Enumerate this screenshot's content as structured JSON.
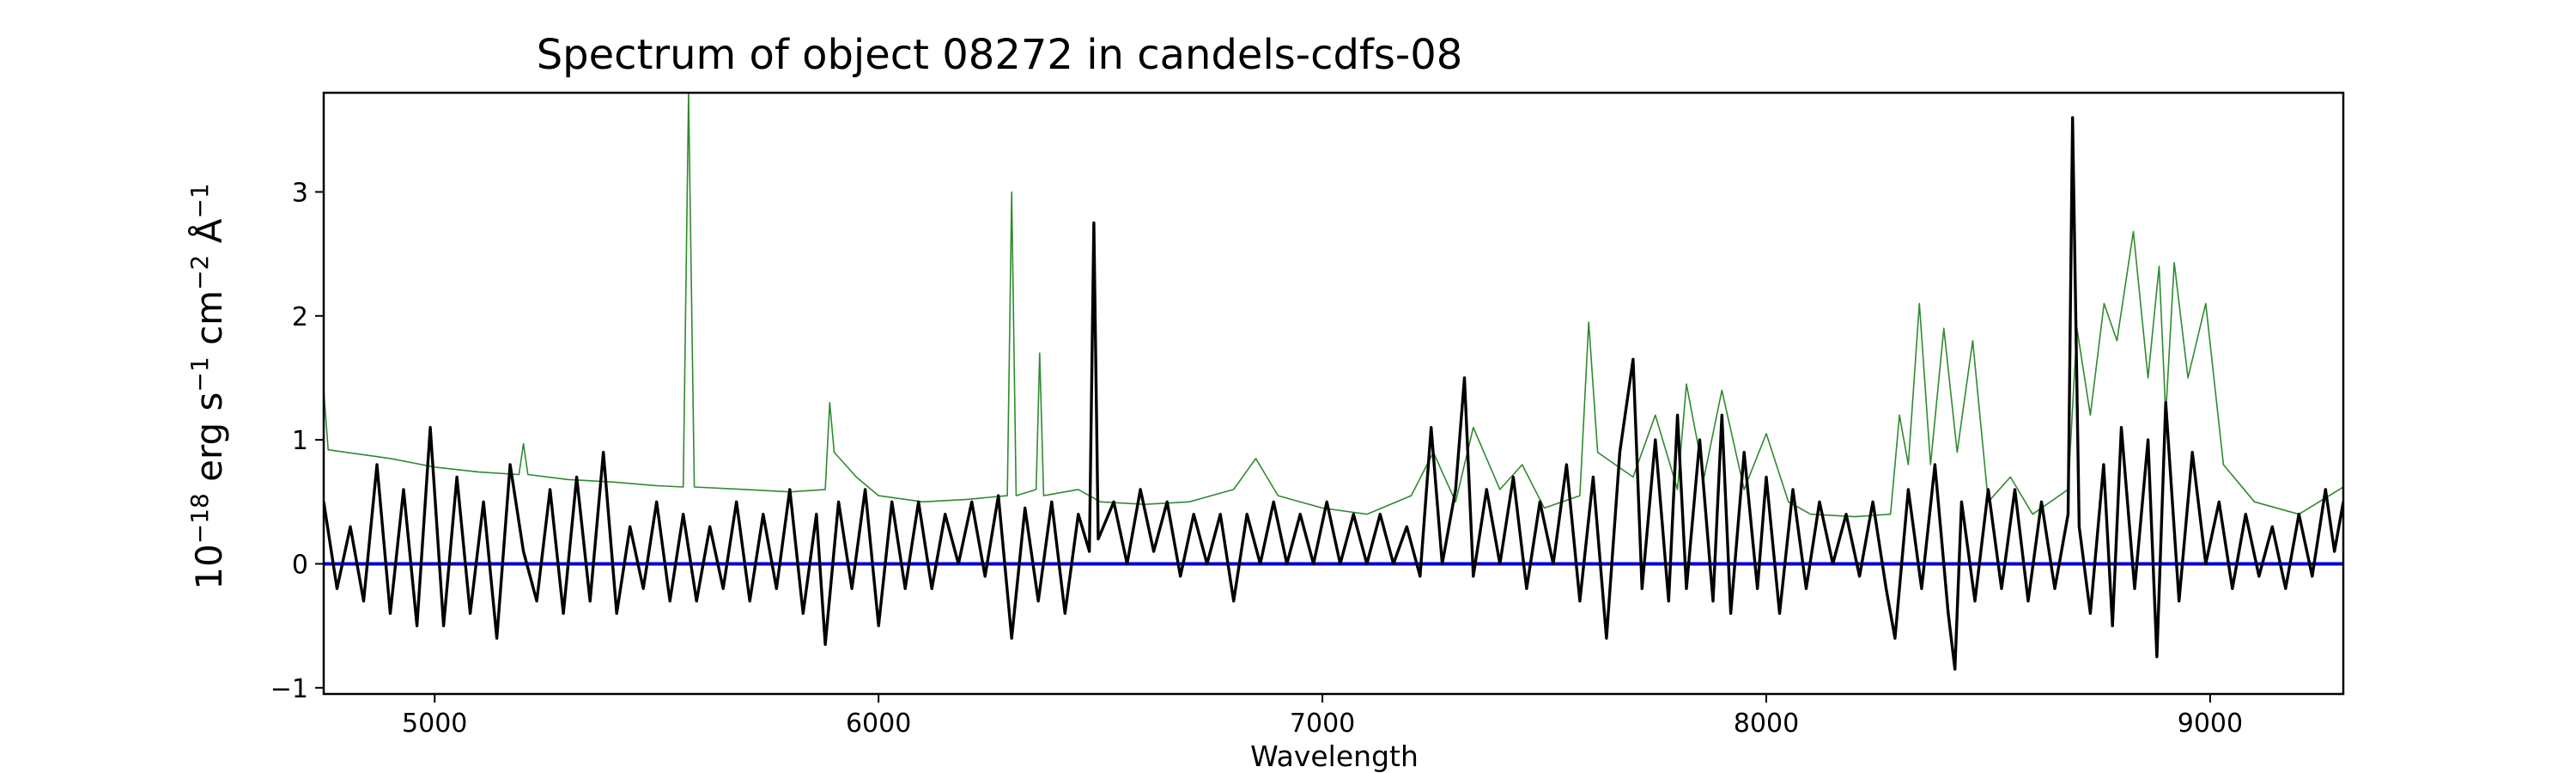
{
  "chart_data": {
    "type": "line",
    "title": "Spectrum of object 08272 in candels-cdfs-08",
    "xlabel": "Wavelength",
    "ylabel": "10^-18 erg s^-1 cm^-2 Å^-1",
    "ylabel_parts": {
      "base": "10",
      "exp1": "−18",
      "erg": " erg s",
      "exp2": "−1",
      "cm": " cm",
      "exp3": "−2",
      "ang": " Å",
      "exp4": "−1"
    },
    "xlim": [
      4750,
      9300
    ],
    "ylim": [
      -1.05,
      3.8
    ],
    "xticks": [
      5000,
      6000,
      7000,
      8000,
      9000
    ],
    "xtick_labels": [
      "5000",
      "6000",
      "7000",
      "8000",
      "9000"
    ],
    "yticks": [
      -1,
      0,
      1,
      2,
      3
    ],
    "ytick_labels": [
      "−1",
      "0",
      "1",
      "2",
      "3"
    ],
    "grid": false,
    "series": [
      {
        "role": "sky",
        "color": "#2f8a2f",
        "points": [
          [
            4750,
            1.4
          ],
          [
            4760,
            0.92
          ],
          [
            4800,
            0.9
          ],
          [
            4900,
            0.85
          ],
          [
            5000,
            0.78
          ],
          [
            5100,
            0.74
          ],
          [
            5190,
            0.72
          ],
          [
            5200,
            0.97
          ],
          [
            5210,
            0.72
          ],
          [
            5300,
            0.68
          ],
          [
            5400,
            0.66
          ],
          [
            5500,
            0.63
          ],
          [
            5560,
            0.62
          ],
          [
            5572,
            3.8
          ],
          [
            5585,
            0.62
          ],
          [
            5700,
            0.6
          ],
          [
            5800,
            0.58
          ],
          [
            5880,
            0.6
          ],
          [
            5890,
            1.3
          ],
          [
            5900,
            0.9
          ],
          [
            5950,
            0.7
          ],
          [
            6000,
            0.55
          ],
          [
            6100,
            0.5
          ],
          [
            6200,
            0.52
          ],
          [
            6290,
            0.55
          ],
          [
            6300,
            3.0
          ],
          [
            6310,
            0.55
          ],
          [
            6355,
            0.6
          ],
          [
            6363,
            1.7
          ],
          [
            6372,
            0.55
          ],
          [
            6450,
            0.6
          ],
          [
            6500,
            0.5
          ],
          [
            6600,
            0.48
          ],
          [
            6700,
            0.5
          ],
          [
            6800,
            0.6
          ],
          [
            6850,
            0.85
          ],
          [
            6900,
            0.55
          ],
          [
            7000,
            0.45
          ],
          [
            7100,
            0.4
          ],
          [
            7200,
            0.55
          ],
          [
            7250,
            0.9
          ],
          [
            7300,
            0.5
          ],
          [
            7340,
            1.1
          ],
          [
            7400,
            0.6
          ],
          [
            7450,
            0.8
          ],
          [
            7500,
            0.45
          ],
          [
            7580,
            0.55
          ],
          [
            7600,
            1.95
          ],
          [
            7620,
            0.9
          ],
          [
            7700,
            0.7
          ],
          [
            7750,
            1.2
          ],
          [
            7800,
            0.6
          ],
          [
            7820,
            1.45
          ],
          [
            7860,
            0.7
          ],
          [
            7900,
            1.4
          ],
          [
            7950,
            0.6
          ],
          [
            8000,
            1.05
          ],
          [
            8050,
            0.5
          ],
          [
            8100,
            0.4
          ],
          [
            8200,
            0.38
          ],
          [
            8280,
            0.4
          ],
          [
            8300,
            1.2
          ],
          [
            8320,
            0.8
          ],
          [
            8345,
            2.1
          ],
          [
            8370,
            0.8
          ],
          [
            8400,
            1.9
          ],
          [
            8430,
            0.9
          ],
          [
            8465,
            1.8
          ],
          [
            8500,
            0.5
          ],
          [
            8550,
            0.7
          ],
          [
            8600,
            0.4
          ],
          [
            8680,
            0.6
          ],
          [
            8700,
            1.9
          ],
          [
            8730,
            1.2
          ],
          [
            8761,
            2.1
          ],
          [
            8790,
            1.8
          ],
          [
            8827,
            2.68
          ],
          [
            8860,
            1.5
          ],
          [
            8885,
            2.4
          ],
          [
            8900,
            1.2
          ],
          [
            8919,
            2.43
          ],
          [
            8950,
            1.5
          ],
          [
            8990,
            2.1
          ],
          [
            9030,
            0.8
          ],
          [
            9100,
            0.5
          ],
          [
            9200,
            0.4
          ],
          [
            9300,
            0.62
          ]
        ]
      },
      {
        "role": "zero",
        "color": "#0000cc",
        "points": [
          [
            4750,
            0.0
          ],
          [
            9300,
            0.0
          ]
        ]
      },
      {
        "role": "object",
        "color": "#000000",
        "points": [
          [
            4750,
            0.5
          ],
          [
            4780,
            -0.2
          ],
          [
            4810,
            0.3
          ],
          [
            4840,
            -0.3
          ],
          [
            4870,
            0.8
          ],
          [
            4900,
            -0.4
          ],
          [
            4930,
            0.6
          ],
          [
            4960,
            -0.5
          ],
          [
            4990,
            1.1
          ],
          [
            5020,
            -0.5
          ],
          [
            5050,
            0.7
          ],
          [
            5080,
            -0.4
          ],
          [
            5110,
            0.5
          ],
          [
            5140,
            -0.6
          ],
          [
            5170,
            0.8
          ],
          [
            5200,
            0.1
          ],
          [
            5230,
            -0.3
          ],
          [
            5260,
            0.6
          ],
          [
            5290,
            -0.4
          ],
          [
            5320,
            0.7
          ],
          [
            5350,
            -0.3
          ],
          [
            5380,
            0.9
          ],
          [
            5410,
            -0.4
          ],
          [
            5440,
            0.3
          ],
          [
            5470,
            -0.2
          ],
          [
            5500,
            0.5
          ],
          [
            5530,
            -0.3
          ],
          [
            5560,
            0.4
          ],
          [
            5590,
            -0.3
          ],
          [
            5620,
            0.3
          ],
          [
            5650,
            -0.2
          ],
          [
            5680,
            0.5
          ],
          [
            5710,
            -0.3
          ],
          [
            5740,
            0.4
          ],
          [
            5770,
            -0.2
          ],
          [
            5800,
            0.6
          ],
          [
            5830,
            -0.4
          ],
          [
            5860,
            0.4
          ],
          [
            5880,
            -0.65
          ],
          [
            5910,
            0.5
          ],
          [
            5940,
            -0.2
          ],
          [
            5970,
            0.6
          ],
          [
            6000,
            -0.5
          ],
          [
            6030,
            0.5
          ],
          [
            6060,
            -0.2
          ],
          [
            6090,
            0.5
          ],
          [
            6120,
            -0.2
          ],
          [
            6150,
            0.4
          ],
          [
            6180,
            0.0
          ],
          [
            6210,
            0.5
          ],
          [
            6240,
            -0.1
          ],
          [
            6270,
            0.55
          ],
          [
            6300,
            -0.6
          ],
          [
            6330,
            0.45
          ],
          [
            6360,
            -0.3
          ],
          [
            6390,
            0.5
          ],
          [
            6420,
            -0.4
          ],
          [
            6450,
            0.4
          ],
          [
            6475,
            0.1
          ],
          [
            6485,
            2.75
          ],
          [
            6495,
            0.2
          ],
          [
            6530,
            0.5
          ],
          [
            6560,
            0.0
          ],
          [
            6590,
            0.6
          ],
          [
            6620,
            0.1
          ],
          [
            6650,
            0.5
          ],
          [
            6680,
            -0.1
          ],
          [
            6710,
            0.4
          ],
          [
            6740,
            0.0
          ],
          [
            6770,
            0.4
          ],
          [
            6800,
            -0.3
          ],
          [
            6830,
            0.4
          ],
          [
            6860,
            0.0
          ],
          [
            6890,
            0.5
          ],
          [
            6920,
            0.0
          ],
          [
            6950,
            0.4
          ],
          [
            6980,
            0.0
          ],
          [
            7010,
            0.5
          ],
          [
            7040,
            0.0
          ],
          [
            7070,
            0.4
          ],
          [
            7100,
            0.0
          ],
          [
            7130,
            0.4
          ],
          [
            7160,
            0.0
          ],
          [
            7190,
            0.3
          ],
          [
            7220,
            -0.1
          ],
          [
            7245,
            1.1
          ],
          [
            7270,
            0.0
          ],
          [
            7300,
            0.6
          ],
          [
            7320,
            1.5
          ],
          [
            7340,
            -0.1
          ],
          [
            7370,
            0.6
          ],
          [
            7400,
            0.0
          ],
          [
            7430,
            0.7
          ],
          [
            7460,
            -0.2
          ],
          [
            7490,
            0.5
          ],
          [
            7520,
            0.0
          ],
          [
            7550,
            0.8
          ],
          [
            7580,
            -0.3
          ],
          [
            7610,
            0.7
          ],
          [
            7640,
            -0.6
          ],
          [
            7670,
            0.9
          ],
          [
            7700,
            1.65
          ],
          [
            7720,
            -0.2
          ],
          [
            7750,
            1.0
          ],
          [
            7780,
            -0.3
          ],
          [
            7800,
            1.2
          ],
          [
            7820,
            -0.2
          ],
          [
            7850,
            1.0
          ],
          [
            7880,
            -0.3
          ],
          [
            7900,
            1.2
          ],
          [
            7920,
            -0.4
          ],
          [
            7950,
            0.9
          ],
          [
            7980,
            -0.2
          ],
          [
            8000,
            0.7
          ],
          [
            8030,
            -0.4
          ],
          [
            8060,
            0.6
          ],
          [
            8090,
            -0.2
          ],
          [
            8120,
            0.5
          ],
          [
            8150,
            0.0
          ],
          [
            8180,
            0.4
          ],
          [
            8210,
            -0.1
          ],
          [
            8240,
            0.5
          ],
          [
            8270,
            -0.2
          ],
          [
            8290,
            -0.6
          ],
          [
            8320,
            0.6
          ],
          [
            8350,
            -0.2
          ],
          [
            8380,
            0.8
          ],
          [
            8410,
            -0.4
          ],
          [
            8425,
            -0.85
          ],
          [
            8440,
            0.5
          ],
          [
            8470,
            -0.3
          ],
          [
            8500,
            0.6
          ],
          [
            8530,
            -0.2
          ],
          [
            8560,
            0.6
          ],
          [
            8590,
            -0.3
          ],
          [
            8620,
            0.5
          ],
          [
            8650,
            -0.2
          ],
          [
            8680,
            0.4
          ],
          [
            8690,
            3.6
          ],
          [
            8705,
            0.3
          ],
          [
            8730,
            -0.4
          ],
          [
            8760,
            0.8
          ],
          [
            8780,
            -0.5
          ],
          [
            8800,
            1.1
          ],
          [
            8830,
            -0.2
          ],
          [
            8860,
            1.0
          ],
          [
            8880,
            -0.75
          ],
          [
            8900,
            1.3
          ],
          [
            8930,
            -0.3
          ],
          [
            8960,
            0.9
          ],
          [
            8990,
            0.0
          ],
          [
            9020,
            0.5
          ],
          [
            9050,
            -0.2
          ],
          [
            9080,
            0.4
          ],
          [
            9110,
            -0.1
          ],
          [
            9140,
            0.3
          ],
          [
            9170,
            -0.2
          ],
          [
            9200,
            0.4
          ],
          [
            9230,
            -0.1
          ],
          [
            9260,
            0.6
          ],
          [
            9280,
            0.1
          ],
          [
            9300,
            0.5
          ]
        ]
      }
    ]
  }
}
